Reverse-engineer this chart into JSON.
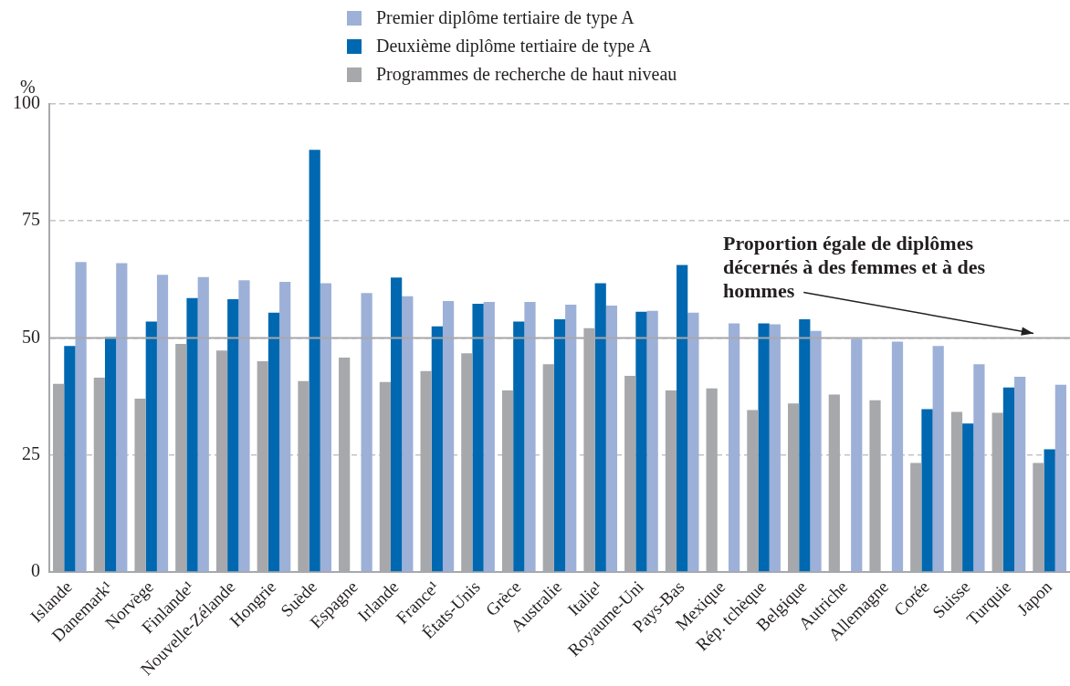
{
  "chart_data": {
    "type": "bar",
    "ylabel": "%",
    "legend": "top",
    "grid": "y",
    "categories": [
      "Islande",
      "Danemark¹",
      "Norvège",
      "Finlande¹",
      "Nouvelle-Zélande",
      "Hongrie",
      "Suède",
      "Espagne",
      "Irlande",
      "France¹",
      "États-Unis",
      "Grèce",
      "Australie",
      "Italie¹",
      "Royaume-Uni",
      "Pays-Bas",
      "Mexique",
      "Rép. tchèque",
      "Belgique",
      "Autriche",
      "Allemagne",
      "Corée",
      "Suisse",
      "Turquie",
      "Japon"
    ],
    "series": [
      {
        "name": "Premier diplôme tertiaire de type A",
        "color": "#9db0d8",
        "values": [
          66.2,
          66,
          63.5,
          63,
          62.3,
          62,
          61.7,
          59.6,
          58.9,
          57.9,
          57.7,
          57.7,
          57.1,
          56.9,
          55.8,
          55.4,
          53.1,
          52.9,
          51.5,
          49.8,
          49.2,
          48.3,
          44.4,
          41.7,
          40
        ]
      },
      {
        "name": "Deuxième diplôme tertiaire de type A",
        "color": "#0068b0",
        "values": [
          48.3,
          50.2,
          53.5,
          58.5,
          58.3,
          55.4,
          90.2,
          null,
          62.9,
          52.5,
          57.3,
          53.5,
          54,
          61.7,
          55.6,
          65.6,
          null,
          53.1,
          54,
          null,
          null,
          34.8,
          31.7,
          39.4,
          26.2
        ]
      },
      {
        "name": "Programmes de recherche de haut niveau",
        "color": "#a7a8ac",
        "values": [
          40.2,
          41.5,
          37,
          48.7,
          47.3,
          45,
          40.8,
          45.8,
          40.6,
          42.9,
          46.7,
          38.8,
          44.4,
          52.1,
          41.9,
          38.8,
          39.2,
          34.6,
          36,
          37.9,
          36.7,
          23.3,
          34.2,
          34,
          23.3
        ]
      }
    ],
    "ylim": [
      0,
      100
    ],
    "yticks": [
      0,
      25,
      50,
      75,
      100
    ],
    "ref_lines": [
      {
        "axis": "y",
        "value": 50,
        "label": "Proportion égale de diplômes décernés à des femmes et à des hommes",
        "color": "#a7a8ac",
        "line_style": "solid"
      }
    ]
  }
}
